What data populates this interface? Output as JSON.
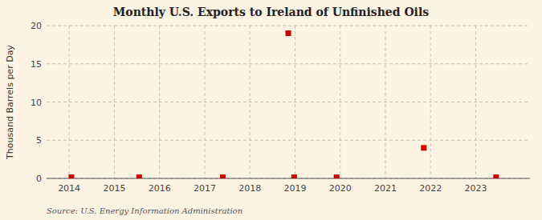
{
  "chart_data": {
    "type": "scatter",
    "title": "Monthly U.S. Exports to Ireland of Unfinished Oils",
    "ylabel": "Thousand Barrels per Day",
    "source": "Source: U.S. Energy Information Administration",
    "x": [
      2014.05,
      2015.55,
      2017.4,
      2018.85,
      2018.98,
      2019.92,
      2021.85,
      2023.45
    ],
    "values": [
      0.15,
      0.15,
      0.15,
      19.0,
      0.15,
      0.15,
      4.0,
      0.15
    ],
    "color": "#cc0000",
    "marker": "square",
    "xlim": [
      2013.5,
      2024.2
    ],
    "xticks": [
      2014,
      2015,
      2016,
      2017,
      2018,
      2019,
      2020,
      2021,
      2022,
      2023
    ],
    "ylim": [
      0,
      20
    ],
    "yticks": [
      0,
      5,
      10,
      15,
      20
    ],
    "grid": true
  }
}
